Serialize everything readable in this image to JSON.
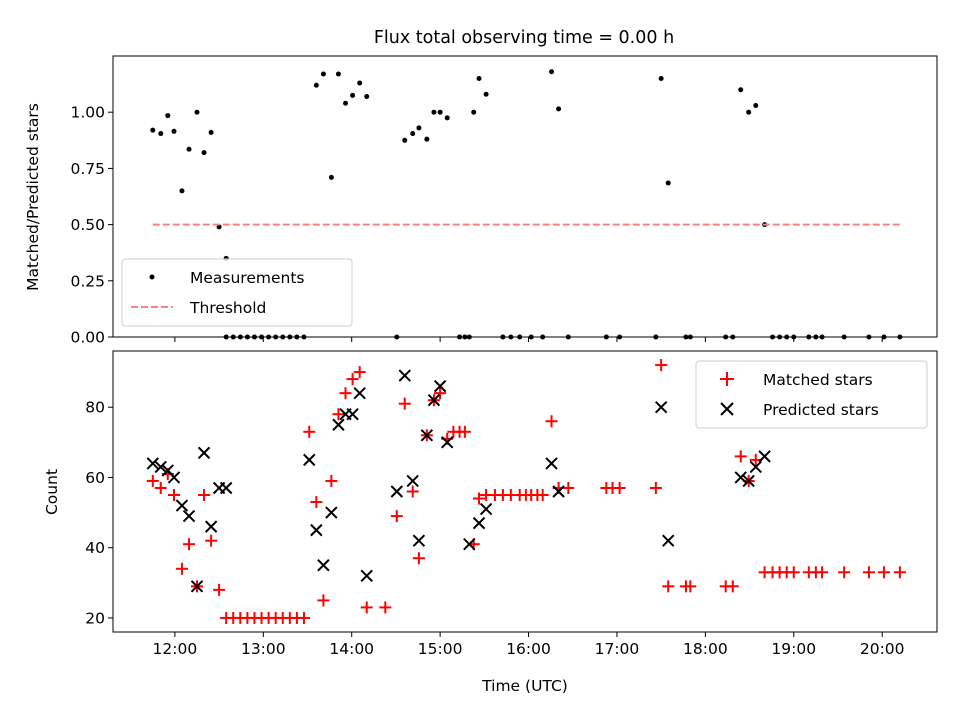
{
  "chart_data": [
    {
      "type": "scatter",
      "title": "Flux total observing time = 0.00 h",
      "ylabel": "Matched/Predicted stars",
      "xlim": [
        11.3,
        20.62
      ],
      "ylim": [
        0,
        1.25
      ],
      "yticks": [
        {
          "v": 0,
          "label": "0.00"
        },
        {
          "v": 0.25,
          "label": "0.25"
        },
        {
          "v": 0.5,
          "label": "0.50"
        },
        {
          "v": 0.75,
          "label": "0.75"
        },
        {
          "v": 1.0,
          "label": "1.00"
        }
      ],
      "legend_position": "lower-left",
      "series": [
        {
          "name": "Measurements",
          "marker": "dot",
          "color": "#000000",
          "x": [
            11.75,
            11.84,
            11.92,
            11.99,
            12.08,
            12.16,
            12.25,
            12.33,
            12.41,
            12.5,
            12.58,
            12.66,
            12.74,
            12.82,
            12.9,
            12.98,
            13.06,
            13.14,
            13.22,
            13.3,
            13.38,
            13.46,
            13.6,
            13.68,
            13.77,
            13.85,
            13.93,
            14.01,
            14.09,
            14.17,
            14.6,
            14.69,
            14.76,
            14.85,
            14.93,
            15.0,
            15.08,
            15.33,
            15.44,
            15.52,
            16.26,
            16.34,
            17.5,
            17.58,
            18.4,
            18.49,
            18.57,
            18.67,
            12.58,
            14.51,
            15.22,
            15.28,
            15.38,
            15.71,
            15.8,
            15.9,
            16.03,
            16.16,
            16.45,
            16.88,
            17.03,
            17.44,
            17.78,
            17.83,
            18.23,
            18.31,
            18.76,
            18.84,
            18.92,
            19.0,
            19.17,
            19.25,
            19.32,
            19.57,
            19.85,
            20.02,
            20.2
          ],
          "y": [
            0.92,
            0.905,
            0.985,
            0.915,
            0.65,
            0.835,
            1.0,
            0.82,
            0.91,
            0.49,
            0.35,
            0.0,
            0.0,
            0.0,
            0.0,
            0.0,
            0.0,
            0.0,
            0.0,
            0.0,
            0.0,
            0.0,
            1.12,
            1.17,
            0.71,
            1.17,
            1.04,
            1.075,
            1.13,
            1.07,
            0.875,
            0.905,
            0.93,
            0.88,
            1.0,
            1.0,
            0.975,
            0.0,
            1.15,
            1.08,
            1.18,
            1.015,
            1.15,
            0.685,
            1.1,
            1.0,
            1.03,
            0.5,
            0.0,
            0.0,
            0.0,
            0.0,
            1.0,
            0.0,
            0.0,
            0.0,
            0.0,
            0.0,
            0.0,
            0.0,
            0.0,
            0.0,
            0.0,
            0.0,
            0.0,
            0.0,
            0.0,
            0.0,
            0.0,
            0.0,
            0.0,
            0.0,
            0.0,
            0.0,
            0.0,
            0.0,
            0.0
          ]
        },
        {
          "name": "Threshold",
          "marker": "dashed-line",
          "color": "#ff7f7f",
          "x": [
            11.75,
            20.2
          ],
          "y": [
            0.5,
            0.5
          ]
        }
      ]
    },
    {
      "type": "scatter",
      "xlabel": "Time (UTC)",
      "ylabel": "Count",
      "xlim": [
        11.3,
        20.62
      ],
      "ylim": [
        16,
        96
      ],
      "xticks": [
        {
          "v": 12,
          "label": "12:00"
        },
        {
          "v": 13,
          "label": "13:00"
        },
        {
          "v": 14,
          "label": "14:00"
        },
        {
          "v": 15,
          "label": "15:00"
        },
        {
          "v": 16,
          "label": "16:00"
        },
        {
          "v": 17,
          "label": "17:00"
        },
        {
          "v": 18,
          "label": "18:00"
        },
        {
          "v": 19,
          "label": "19:00"
        },
        {
          "v": 20,
          "label": "20:00"
        }
      ],
      "yticks": [
        {
          "v": 20,
          "label": "20"
        },
        {
          "v": 40,
          "label": "40"
        },
        {
          "v": 60,
          "label": "60"
        },
        {
          "v": 80,
          "label": "80"
        }
      ],
      "legend_position": "top-right",
      "series": [
        {
          "name": "Matched stars",
          "marker": "plus",
          "color": "#ff0000",
          "x": [
            11.75,
            11.84,
            11.92,
            11.99,
            12.08,
            12.16,
            12.25,
            12.33,
            12.41,
            12.5,
            12.58,
            12.66,
            12.74,
            12.82,
            12.9,
            12.98,
            13.06,
            13.14,
            13.22,
            13.3,
            13.38,
            13.46,
            13.52,
            13.6,
            13.68,
            13.77,
            13.85,
            13.93,
            14.01,
            14.09,
            14.17,
            14.38,
            14.51,
            14.6,
            14.69,
            14.76,
            14.85,
            14.93,
            15.0,
            15.08,
            15.15,
            15.22,
            15.28,
            15.38,
            15.44,
            15.52,
            15.62,
            15.71,
            15.8,
            15.9,
            15.97,
            16.03,
            16.1,
            16.16,
            16.26,
            16.34,
            16.45,
            16.88,
            16.95,
            17.03,
            17.44,
            17.5,
            17.58,
            17.78,
            17.83,
            18.23,
            18.31,
            18.4,
            18.49,
            18.57,
            18.67,
            18.76,
            18.84,
            18.92,
            19.0,
            19.17,
            19.25,
            19.32,
            19.57,
            19.85,
            20.02,
            20.2
          ],
          "y": [
            59,
            57,
            61,
            55,
            34,
            41,
            29,
            55,
            42,
            28,
            20,
            20,
            20,
            20,
            20,
            20,
            20,
            20,
            20,
            20,
            20,
            20,
            73,
            53,
            25,
            59,
            78,
            84,
            88,
            90,
            23,
            23,
            49,
            81,
            56,
            37,
            72,
            82,
            84,
            71,
            73,
            73,
            73,
            41,
            54,
            55,
            55,
            55,
            55,
            55,
            55,
            55,
            55,
            55,
            76,
            57,
            57,
            57,
            57,
            57,
            57,
            92,
            29,
            29,
            29,
            29,
            29,
            66,
            59,
            65,
            33,
            33,
            33,
            33,
            33,
            33,
            33,
            33,
            33,
            33,
            33,
            33
          ]
        },
        {
          "name": "Predicted stars",
          "marker": "x",
          "color": "#000000",
          "x": [
            11.75,
            11.84,
            11.92,
            11.99,
            12.08,
            12.16,
            12.25,
            12.33,
            12.41,
            12.5,
            12.58,
            13.52,
            13.6,
            13.68,
            13.77,
            13.85,
            13.93,
            14.01,
            14.09,
            14.17,
            14.51,
            14.6,
            14.69,
            14.76,
            14.85,
            14.93,
            15.0,
            15.08,
            15.33,
            15.44,
            15.52,
            16.26,
            16.34,
            17.5,
            17.58,
            18.4,
            18.49,
            18.57,
            18.67
          ],
          "y": [
            64,
            63,
            62,
            60,
            52,
            49,
            29,
            67,
            46,
            57,
            57,
            65,
            45,
            35,
            50,
            75,
            78,
            78,
            84,
            32,
            56,
            89,
            59,
            42,
            72,
            82,
            86,
            70,
            41,
            47,
            51,
            64,
            56,
            80,
            42,
            60,
            59,
            63,
            66
          ]
        }
      ]
    }
  ]
}
